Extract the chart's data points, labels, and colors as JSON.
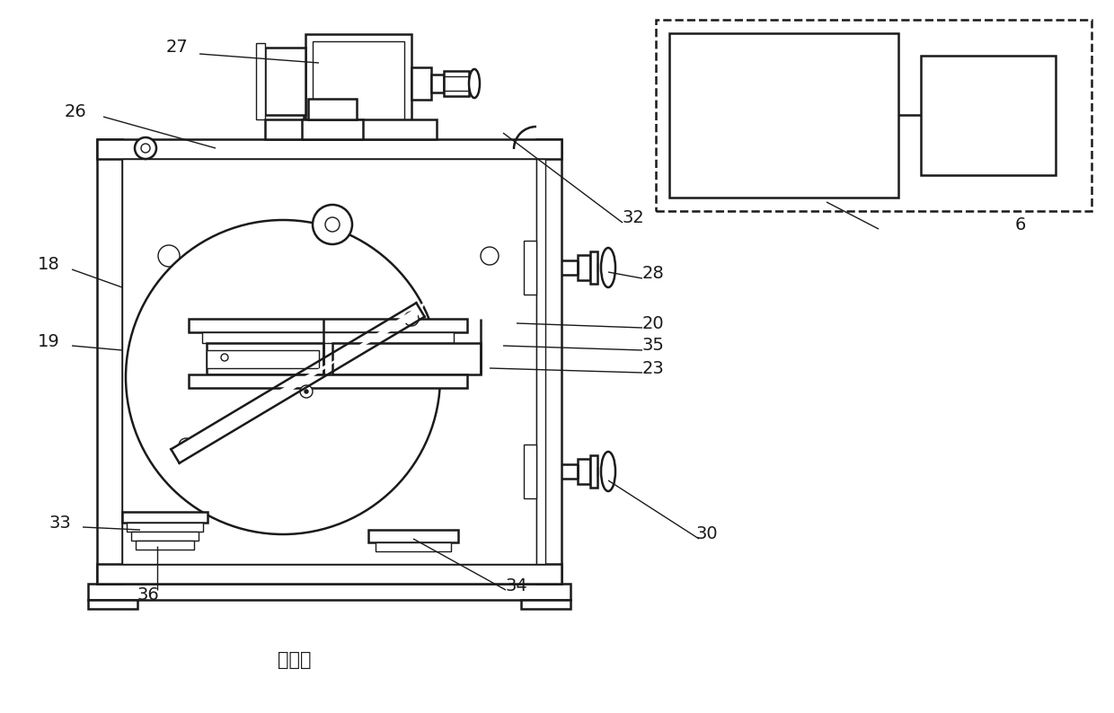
{
  "bg_color": "#ffffff",
  "lc": "#1a1a1a",
  "lw": 1.8,
  "tlw": 1.0,
  "title": "主视图",
  "title_fontsize": 15,
  "label_fontsize": 14
}
